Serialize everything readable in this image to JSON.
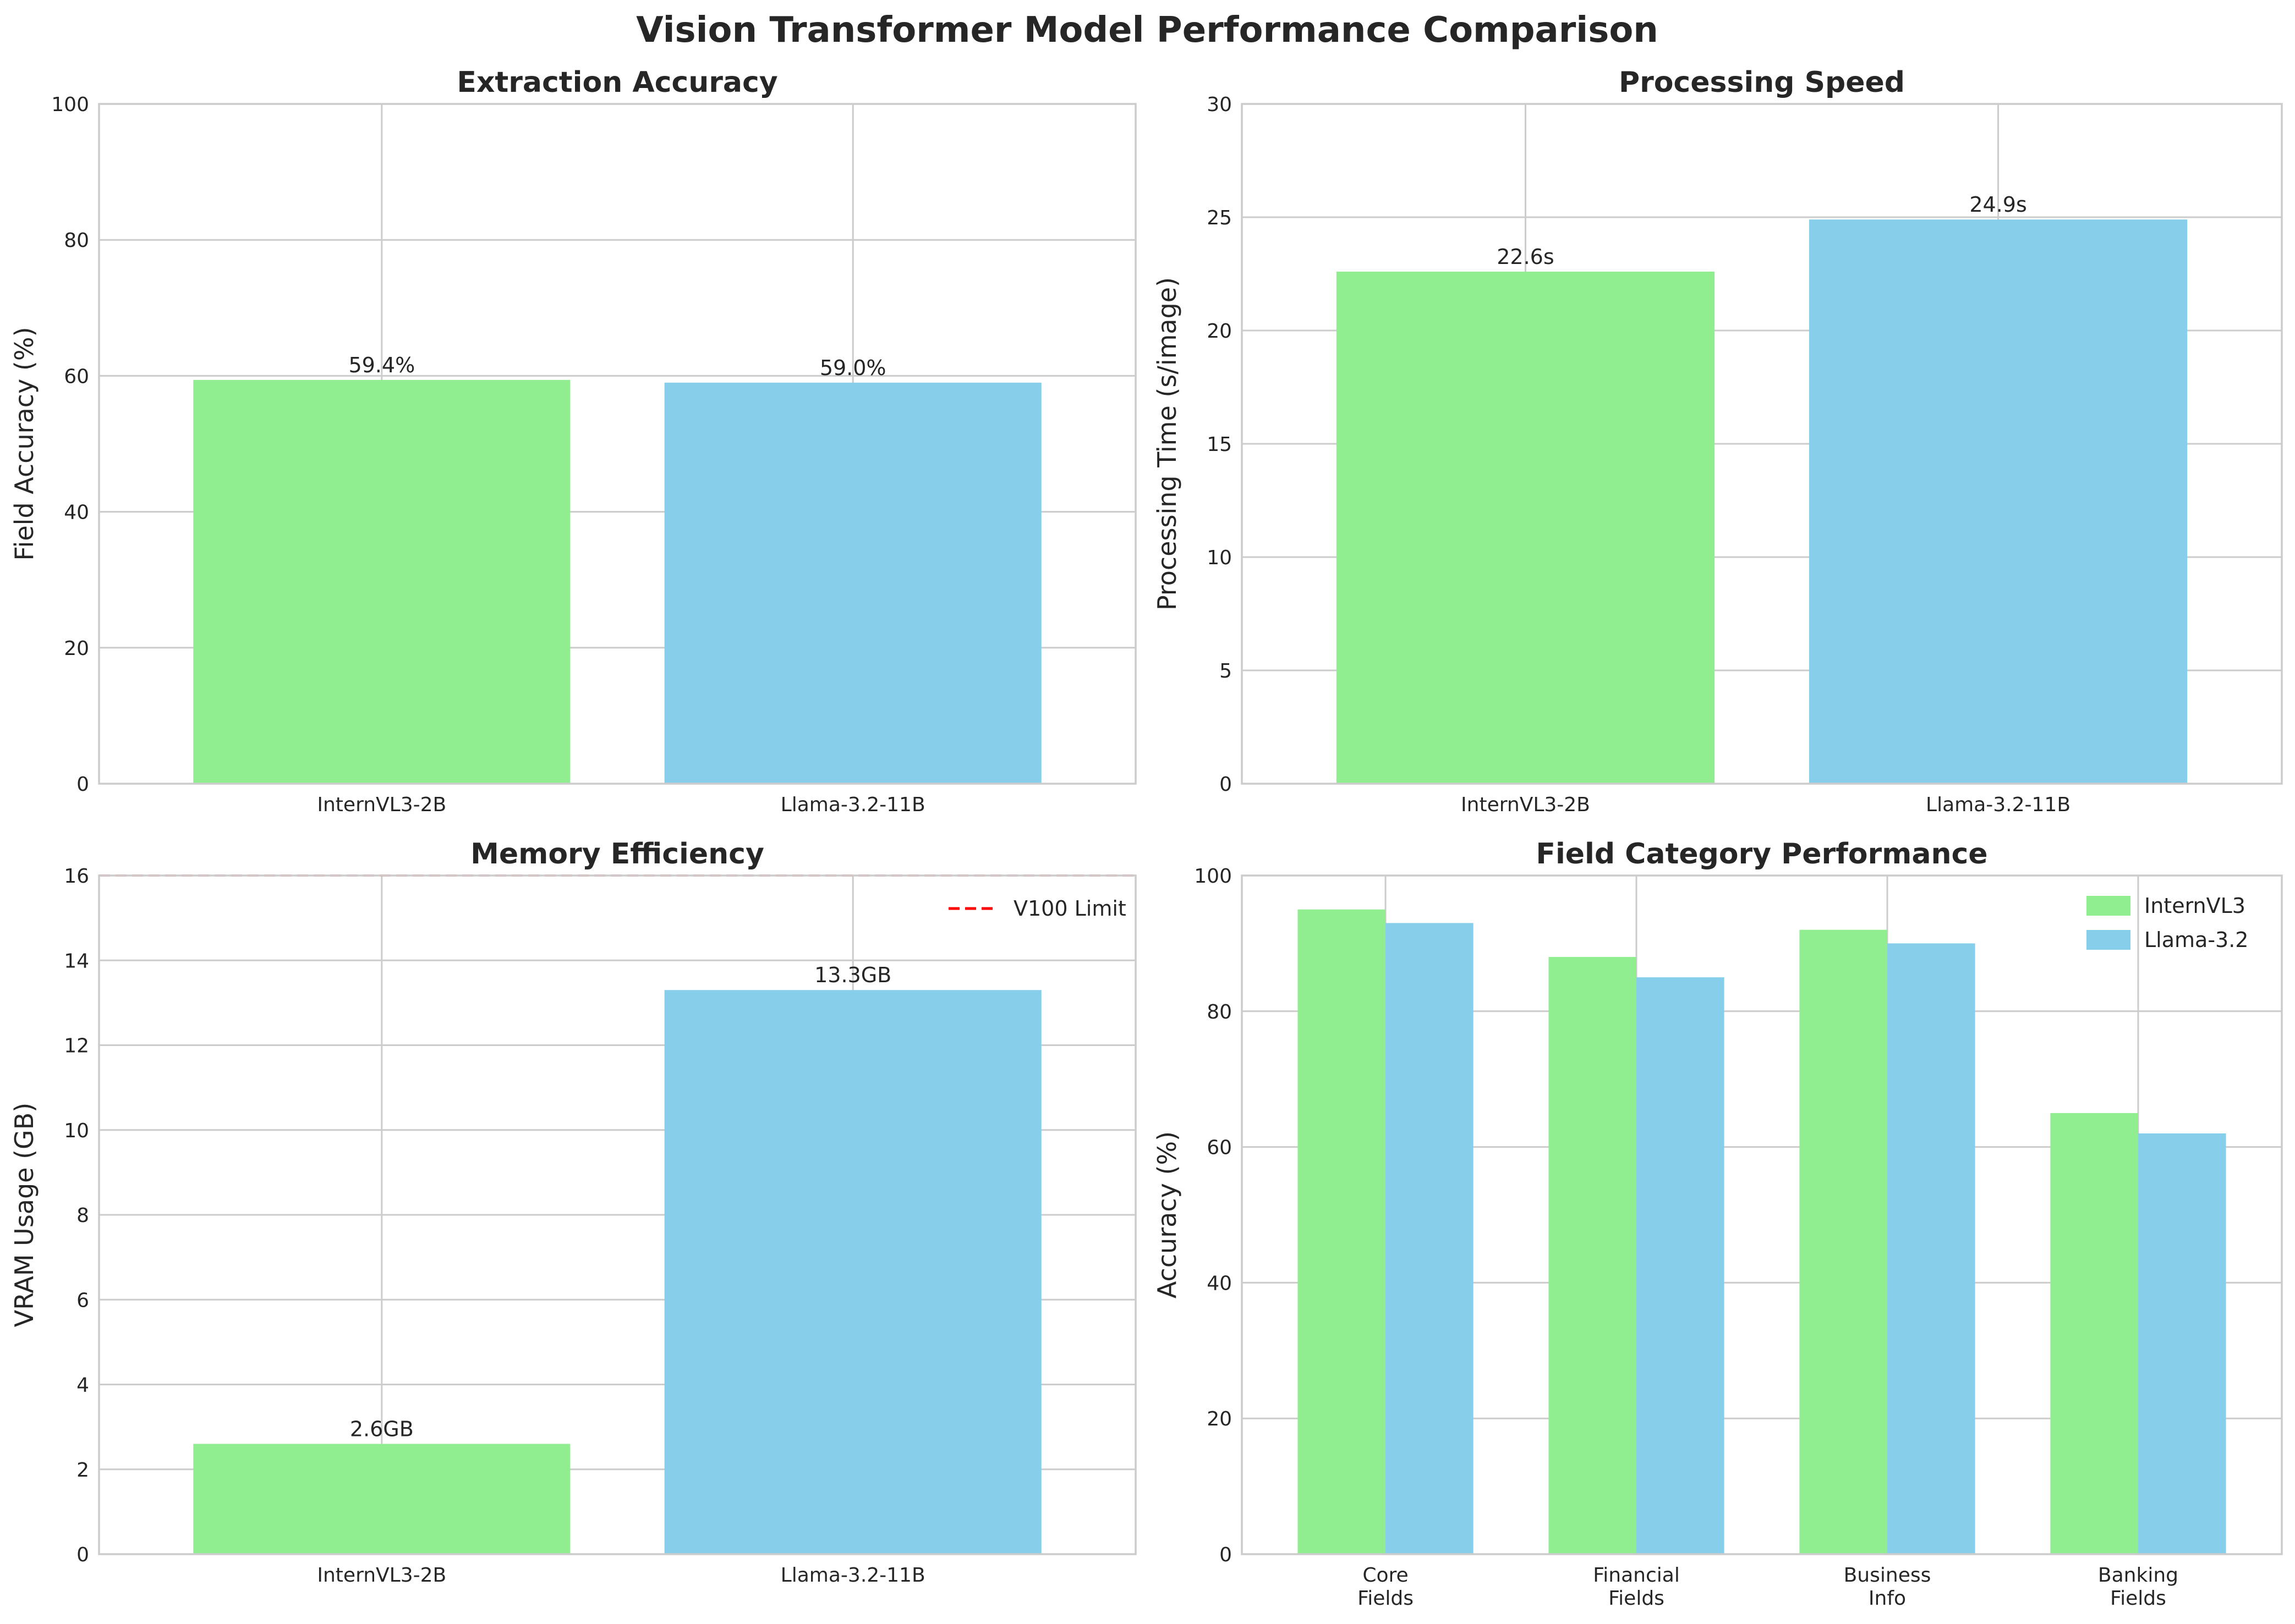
{
  "figure_title": "Vision Transformer Model Performance Comparison",
  "colors": {
    "internvl": "#90ee90",
    "llama": "#87ceeb",
    "limit": "#ff0000"
  },
  "chart_data": [
    {
      "type": "bar",
      "title": "Extraction Accuracy",
      "xlabel": "",
      "ylabel": "Field Accuracy (%)",
      "categories": [
        "InternVL3-2B",
        "Llama-3.2-11B"
      ],
      "values": [
        59.4,
        59.0
      ],
      "data_labels": [
        "59.4%",
        "59.0%"
      ],
      "ylim": [
        0,
        100
      ],
      "yticks": [
        0,
        20,
        40,
        60,
        80,
        100
      ],
      "grid": true
    },
    {
      "type": "bar",
      "title": "Processing Speed",
      "xlabel": "",
      "ylabel": "Processing Time (s/image)",
      "categories": [
        "InternVL3-2B",
        "Llama-3.2-11B"
      ],
      "values": [
        22.6,
        24.9
      ],
      "data_labels": [
        "22.6s",
        "24.9s"
      ],
      "ylim": [
        0,
        30
      ],
      "yticks": [
        0,
        5,
        10,
        15,
        20,
        25,
        30
      ],
      "grid": true
    },
    {
      "type": "bar",
      "title": "Memory Efficiency",
      "xlabel": "",
      "ylabel": "VRAM Usage (GB)",
      "categories": [
        "InternVL3-2B",
        "Llama-3.2-11B"
      ],
      "values": [
        2.6,
        13.3
      ],
      "data_labels": [
        "2.6GB",
        "13.3GB"
      ],
      "ylim": [
        0,
        16
      ],
      "yticks": [
        0,
        2,
        4,
        6,
        8,
        10,
        12,
        14,
        16
      ],
      "reference_line": {
        "y": 16,
        "label": "V100 Limit",
        "style": "dashed"
      },
      "legend": "top-right",
      "grid": true
    },
    {
      "type": "bar",
      "title": "Field Category Performance",
      "xlabel": "",
      "ylabel": "Accuracy (%)",
      "categories": [
        "Core\nFields",
        "Financial\nFields",
        "Business\nInfo",
        "Banking\nFields"
      ],
      "series": [
        {
          "name": "InternVL3",
          "values": [
            95,
            88,
            92,
            65
          ]
        },
        {
          "name": "Llama-3.2",
          "values": [
            93,
            85,
            90,
            62
          ]
        }
      ],
      "ylim": [
        0,
        100
      ],
      "yticks": [
        0,
        20,
        40,
        60,
        80,
        100
      ],
      "legend": "top-right",
      "grid": true
    }
  ]
}
